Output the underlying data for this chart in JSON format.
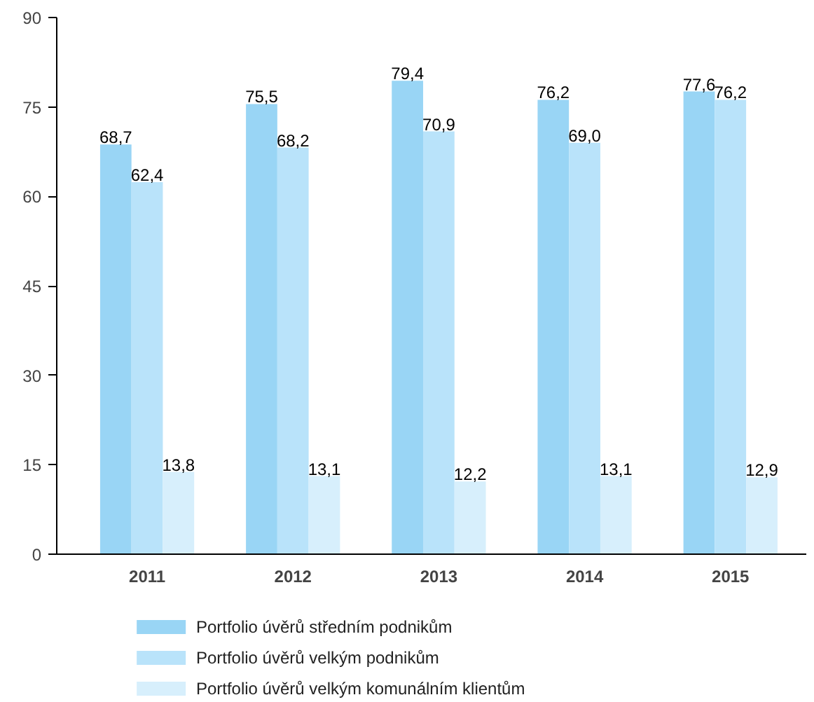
{
  "chart_data": {
    "type": "bar",
    "categories": [
      "2011",
      "2012",
      "2013",
      "2014",
      "2015"
    ],
    "series": [
      {
        "name": "Portfolio úvěrů středním podnikům",
        "color": "#99d5f5",
        "values": [
          68.7,
          75.5,
          79.4,
          76.2,
          77.6
        ],
        "value_labels": [
          "68,7",
          "75,5",
          "79,4",
          "76,2",
          "77,6"
        ]
      },
      {
        "name": "Portfolio úvěrů velkým podnikům",
        "color": "#b9e3fa",
        "values": [
          62.4,
          68.2,
          70.9,
          69.0,
          76.2
        ],
        "value_labels": [
          "62,4",
          "68,2",
          "70,9",
          "69,0",
          "76,2"
        ]
      },
      {
        "name": "Portfolio úvěrů velkým komunálním klientům",
        "color": "#d7effc",
        "values": [
          13.8,
          13.1,
          12.2,
          13.1,
          12.9
        ],
        "value_labels": [
          "13,8",
          "13,1",
          "12,2",
          "13,1",
          "12,9"
        ]
      }
    ],
    "ylim": [
      0,
      90
    ],
    "yticks": [
      0,
      15,
      30,
      45,
      60,
      75,
      90
    ],
    "legend": "bottom"
  }
}
